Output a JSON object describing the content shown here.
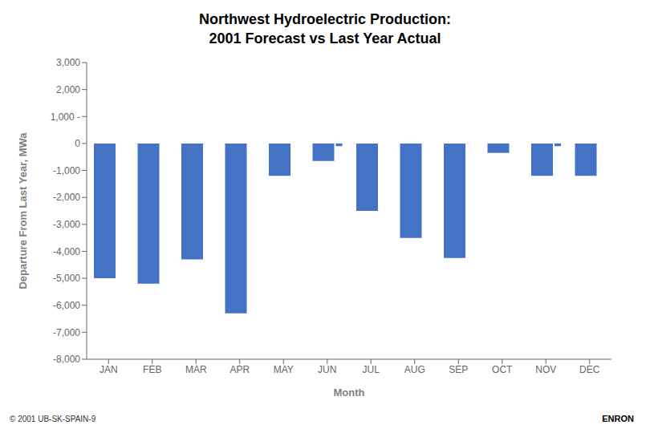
{
  "chart_data": {
    "type": "bar",
    "title": "Northwest Hydroelectric Production:",
    "subtitle": "2001 Forecast vs Last Year Actual",
    "x_label": "Month",
    "y_label": "Departure From Last Year, MWa",
    "categories": [
      "JAN",
      "FEB",
      "MAR",
      "APR",
      "MAY",
      "JUN",
      "JUL",
      "AUG",
      "SEP",
      "OCT",
      "NOV",
      "DEC"
    ],
    "values": [
      -5000,
      -5200,
      -4300,
      -6300,
      -1200,
      -650,
      -2500,
      -3500,
      -4250,
      -350,
      -1200,
      -1200
    ],
    "secondary_values": [
      null,
      null,
      null,
      null,
      null,
      -100,
      null,
      null,
      null,
      null,
      -100,
      null
    ],
    "color": "#4472C4",
    "ylim": [
      -8000,
      3000
    ],
    "yticks": [
      {
        "value": -8000,
        "label": "-8,000"
      },
      {
        "value": -7000,
        "label": "-7,000"
      },
      {
        "value": -6000,
        "label": "-6,000"
      },
      {
        "value": -5000,
        "label": "-5,000"
      },
      {
        "value": -4000,
        "label": "-4,000"
      },
      {
        "value": -3000,
        "label": "-3,000"
      },
      {
        "value": -2000,
        "label": "-2,000"
      },
      {
        "value": -1000,
        "label": "-1,000"
      },
      0,
      {
        "value": 1000,
        "label": "1,000 -"
      },
      {
        "value": 2000,
        "label": "2,000"
      },
      {
        "value": 3000,
        "label": "3,000"
      }
    ],
    "grid": false,
    "annotations": [
      {
        "text": "© 2001 UB-SK-SPAIN-9"
      },
      {
        "text": "ENRON"
      }
    ]
  }
}
